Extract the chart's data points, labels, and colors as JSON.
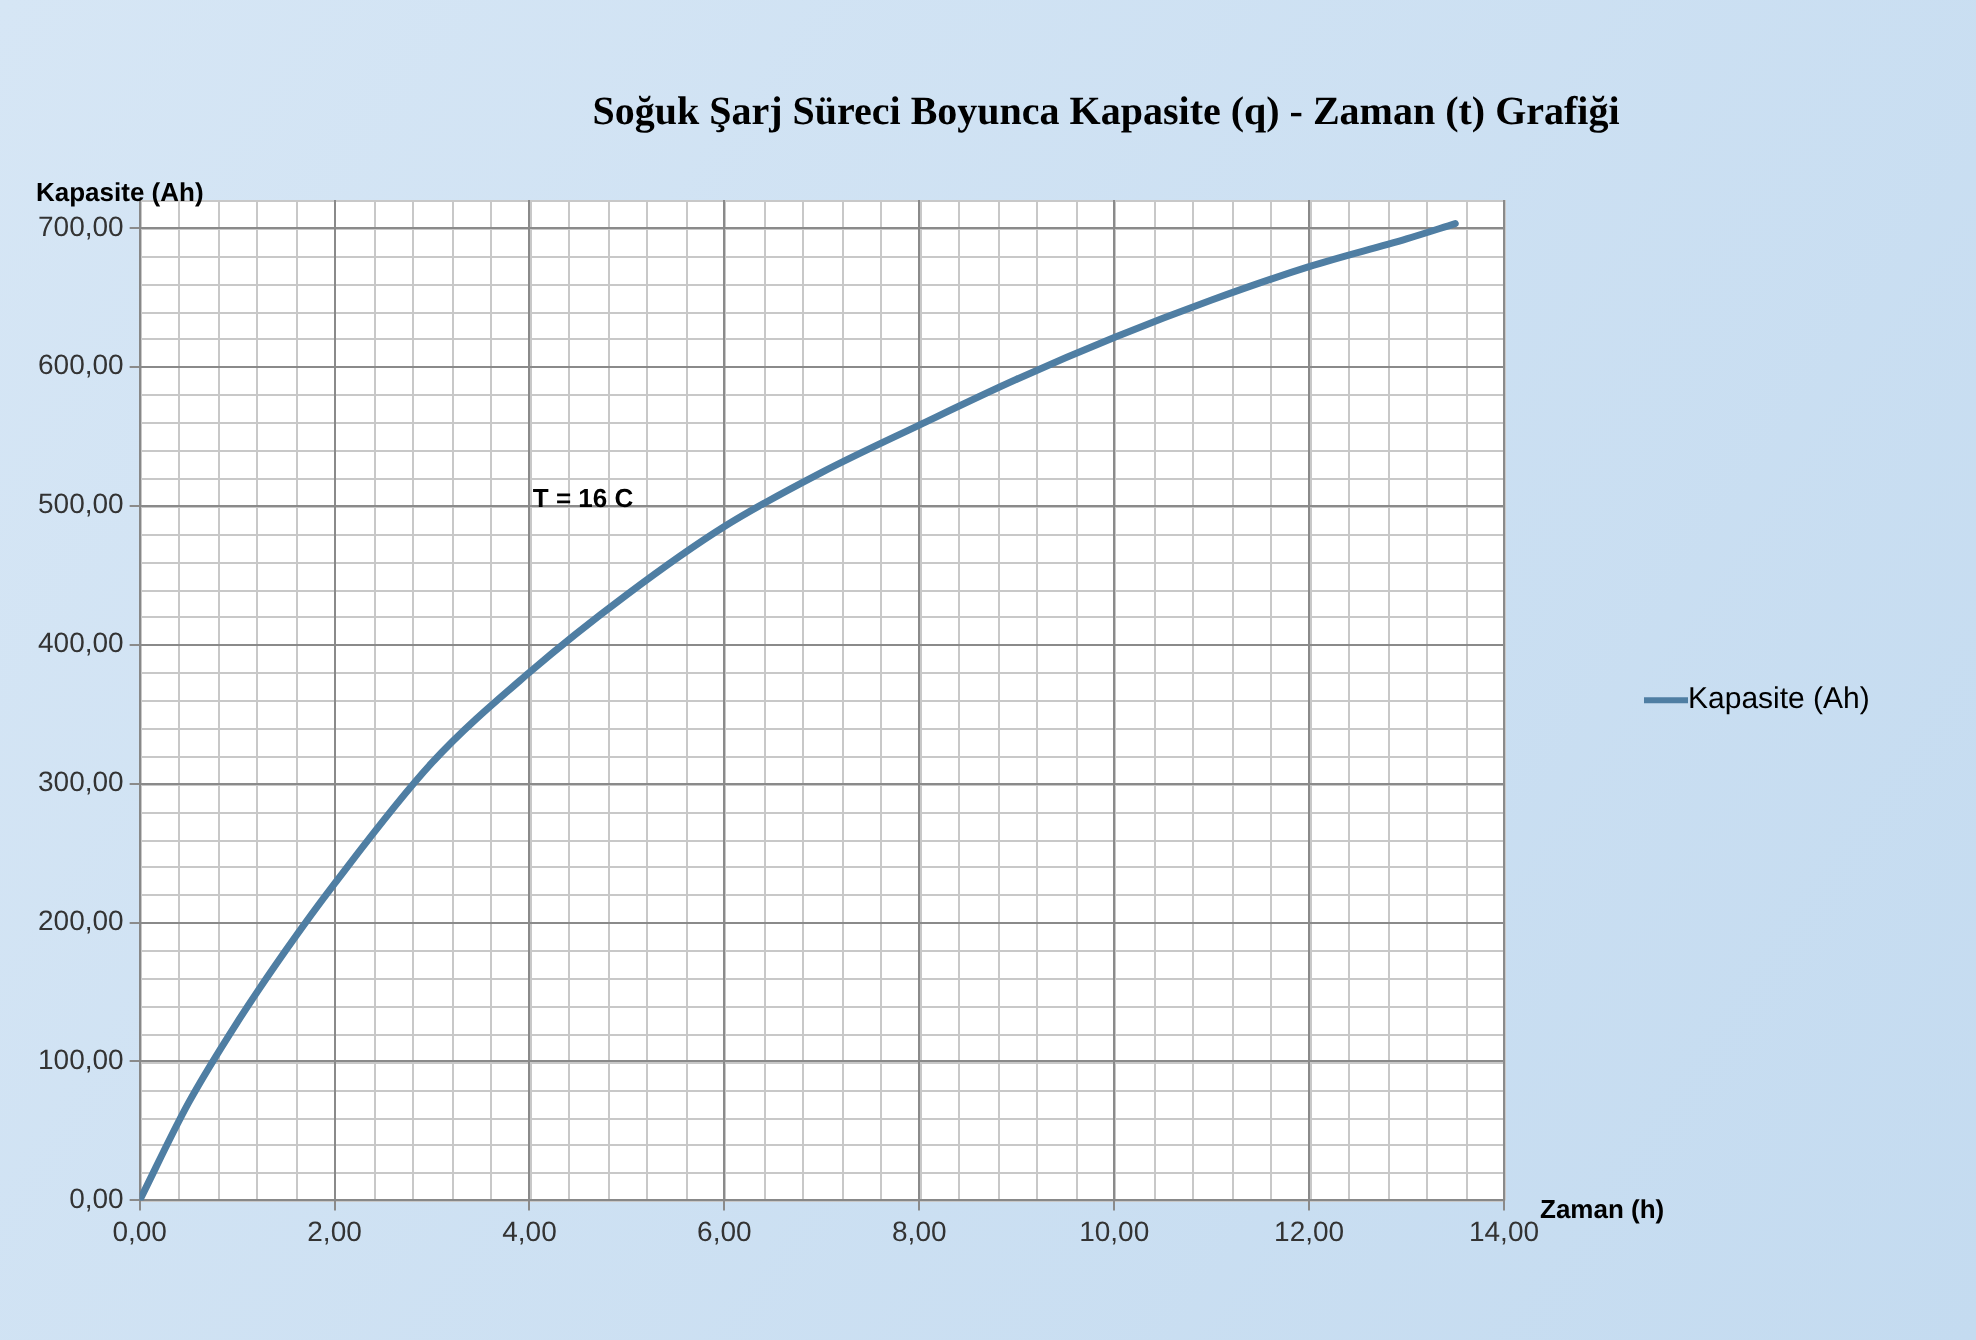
{
  "chart_data": {
    "type": "line",
    "title": "Soğuk Şarj Süreci Boyunca Kapasite (q) - Zaman (t) Grafiği",
    "xlabel": "Zaman (h)",
    "ylabel": "Kapasite (Ah)",
    "x": [
      0,
      0.5,
      1,
      1.5,
      2,
      3,
      4,
      5,
      6,
      7,
      8,
      9,
      10,
      11,
      12,
      13,
      13.5
    ],
    "series": [
      {
        "name": "Kapasite (Ah)",
        "color": "#4f7ea3",
        "values": [
          0,
          70,
          128,
          180,
          228,
          315,
          380,
          436,
          485,
          524,
          558,
          591,
          621,
          648,
          672,
          692,
          703
        ]
      }
    ],
    "xlim": [
      0,
      14
    ],
    "xticks": [
      {
        "value": 0,
        "label": "0,00"
      },
      {
        "value": 2,
        "label": "2,00"
      },
      {
        "value": 4,
        "label": "4,00"
      },
      {
        "value": 6,
        "label": "6,00"
      },
      {
        "value": 8,
        "label": "8,00"
      },
      {
        "value": 10,
        "label": "10,00"
      },
      {
        "value": 12,
        "label": "12,00"
      },
      {
        "value": 14,
        "label": "14,00"
      }
    ],
    "ylim": [
      0,
      720
    ],
    "yticks": [
      {
        "value": 0,
        "label": "0,00"
      },
      {
        "value": 100,
        "label": "100,00"
      },
      {
        "value": 200,
        "label": "200,00"
      },
      {
        "value": 300,
        "label": "300,00"
      },
      {
        "value": 400,
        "label": "400,00"
      },
      {
        "value": 500,
        "label": "500,00"
      },
      {
        "value": 600,
        "label": "600,00"
      },
      {
        "value": 700,
        "label": "700,00"
      }
    ],
    "annotations": [
      "T = 16 C"
    ],
    "grid": true,
    "legend": "right",
    "marker": "none",
    "line_style": "solid"
  }
}
